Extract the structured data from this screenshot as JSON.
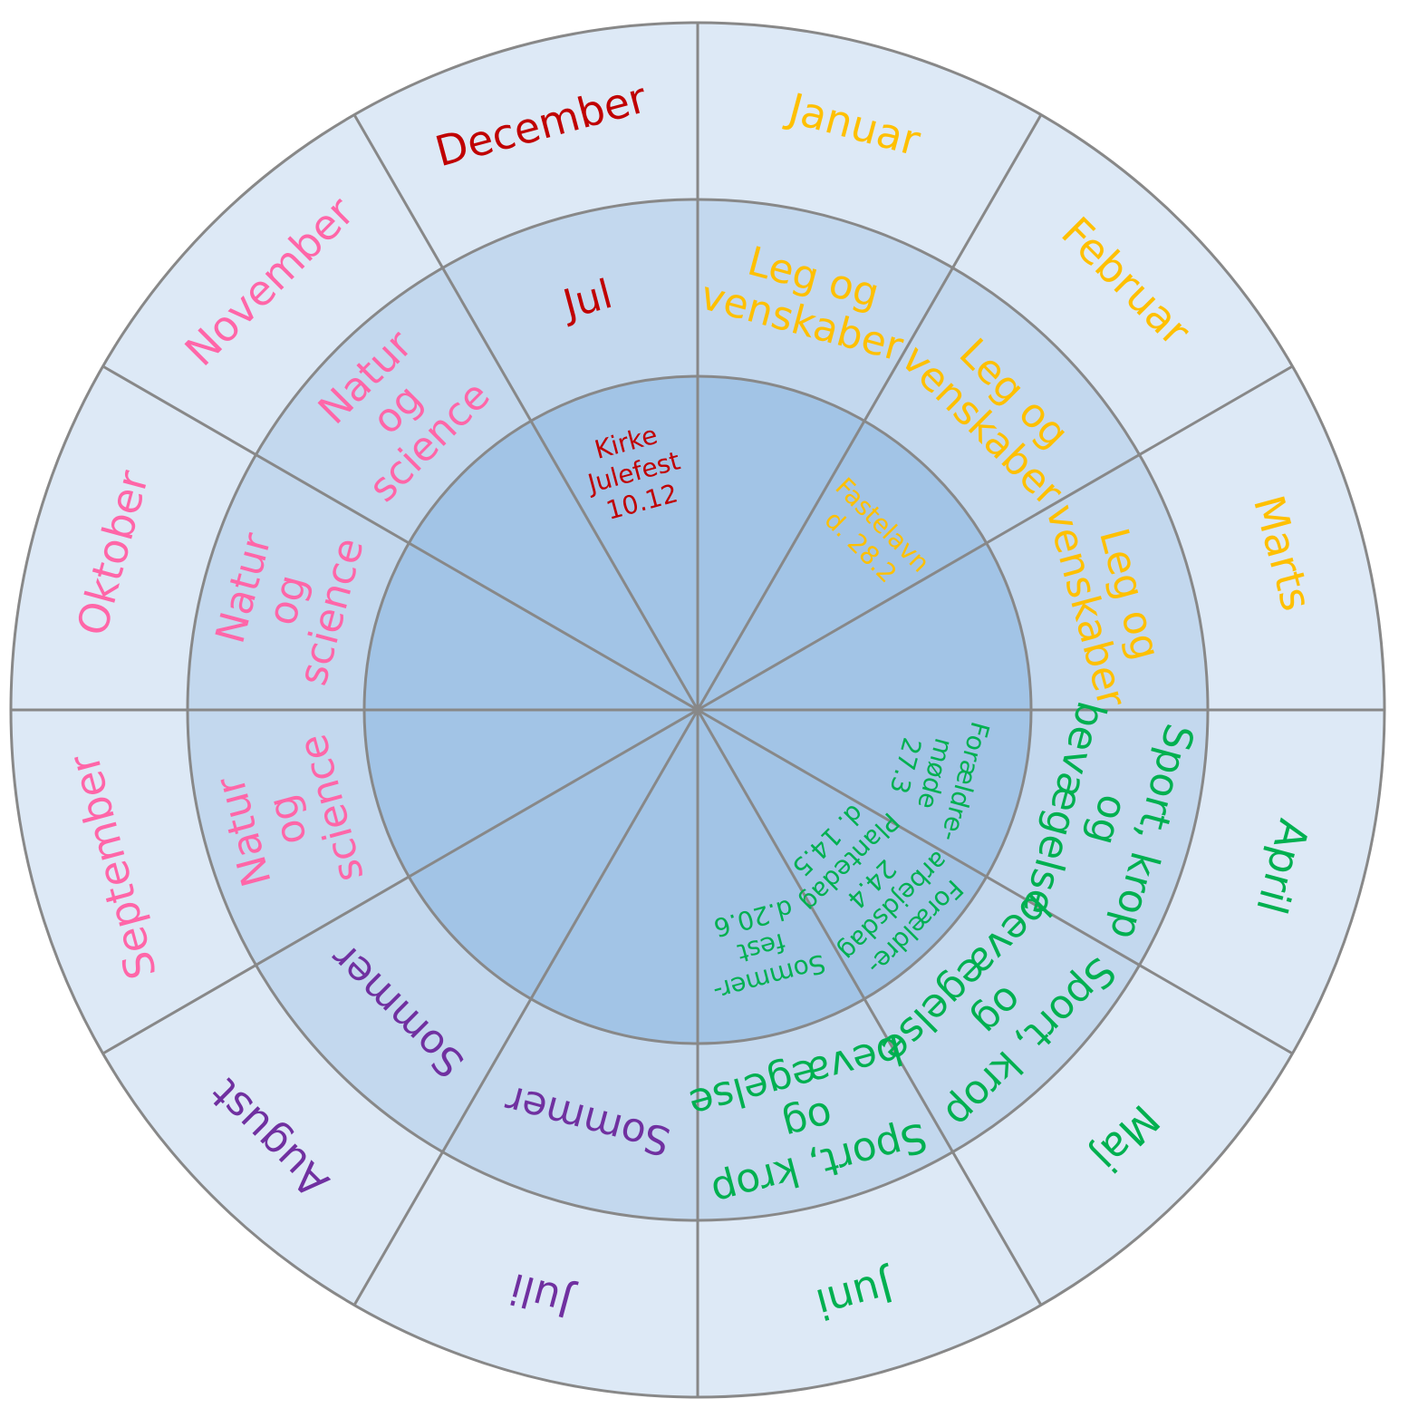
{
  "months": [
    {
      "name": "Januar",
      "color": "#ffc000",
      "theme": [
        "Leg og",
        "venskaber"
      ],
      "event": []
    },
    {
      "name": "Februar",
      "color": "#ffc000",
      "theme": [
        "Leg og",
        "venskaber"
      ],
      "event": [
        "Fastelavn",
        "d. 28.2"
      ]
    },
    {
      "name": "Marts",
      "color": "#ffc000",
      "theme": [
        "Leg og",
        "venskaber"
      ],
      "event": []
    },
    {
      "name": "April",
      "color": "#00b050",
      "theme": [
        "Sport, krop",
        "og",
        "bevægelse"
      ],
      "event": [
        "Forældre-",
        "møde",
        "27.3"
      ]
    },
    {
      "name": "Maj",
      "color": "#00b050",
      "theme": [
        "Sport, krop",
        "og",
        "bevægelse"
      ],
      "event": [
        "Forældre-",
        "arbejdsdag",
        "24.4",
        "Plantedag",
        "d. 14.5"
      ]
    },
    {
      "name": "Juni",
      "color": "#00b050",
      "theme": [
        "Sport, krop",
        "og",
        "bevægelse"
      ],
      "event": [
        "Sommer-",
        "fest",
        "d.20.6"
      ]
    },
    {
      "name": "Juli",
      "color": "#7030a0",
      "theme": [
        "Sommer"
      ],
      "event": []
    },
    {
      "name": "August",
      "color": "#7030a0",
      "theme": [
        "Sommer"
      ],
      "event": []
    },
    {
      "name": "September",
      "color": "#ff66a8",
      "theme": [
        "Natur",
        "og",
        "science"
      ],
      "event": []
    },
    {
      "name": "Oktober",
      "color": "#ff66a8",
      "theme": [
        "Natur",
        "og",
        "science"
      ],
      "event": []
    },
    {
      "name": "November",
      "color": "#ff66a8",
      "theme": [
        "Natur",
        "og",
        "science"
      ],
      "event": []
    },
    {
      "name": "December",
      "color": "#c00000",
      "theme": [
        "Jul"
      ],
      "event": [
        "Kirke",
        "Julefest",
        "10.12"
      ]
    }
  ]
}
